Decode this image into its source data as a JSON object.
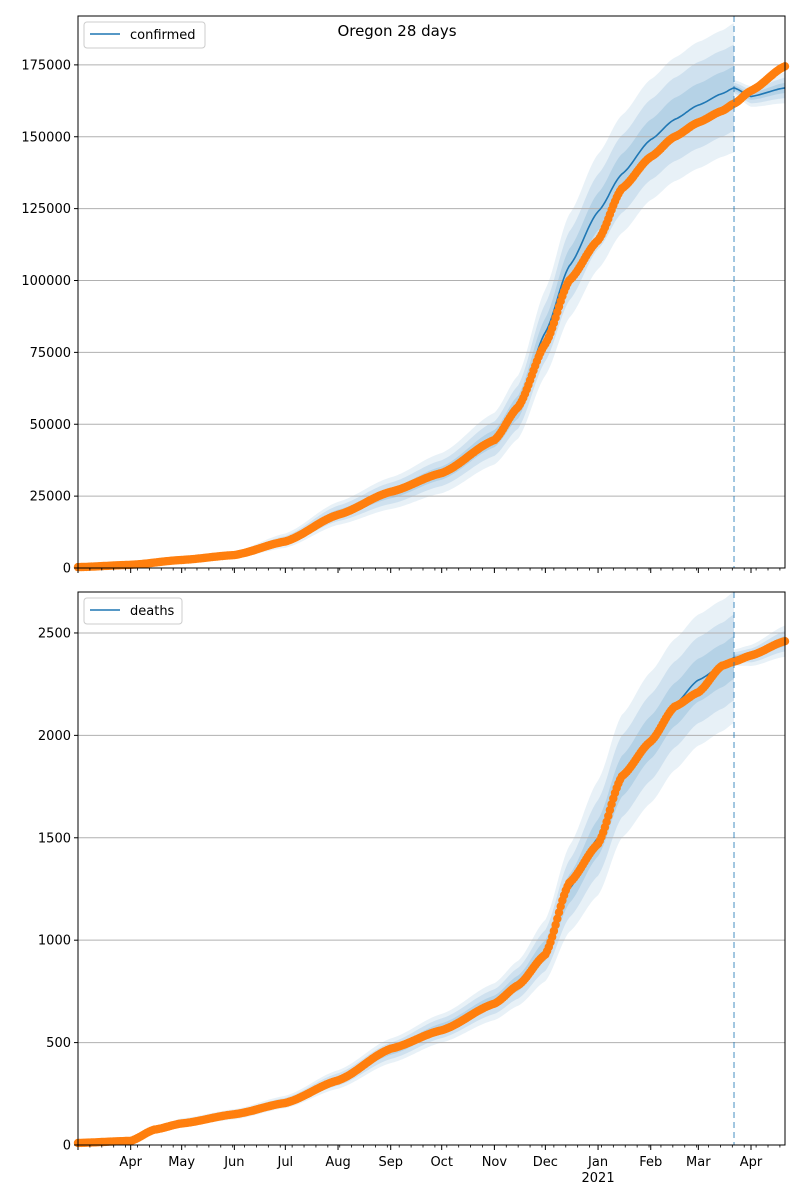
{
  "figure": {
    "title": "Oregon 28 days"
  },
  "chart_data": [
    {
      "type": "line",
      "legend": "confirmed",
      "legend_position": "top-left",
      "grid": "horizontal",
      "ylim": [
        0,
        192000
      ],
      "yticks": [
        0,
        25000,
        50000,
        75000,
        100000,
        125000,
        150000,
        175000
      ],
      "xlim": [
        "2020-03-01",
        "2021-04-21"
      ],
      "forecast_start": "2021-03-22",
      "series_colors": {
        "model": "#1f77b4",
        "observed": "#ff7f0e",
        "band": "#1f77b4"
      },
      "model": {
        "x": [
          "2020-03-01",
          "2020-04-01",
          "2020-05-01",
          "2020-06-01",
          "2020-07-01",
          "2020-08-01",
          "2020-09-01",
          "2020-10-01",
          "2020-11-01",
          "2020-11-15",
          "2020-12-01",
          "2020-12-15",
          "2021-01-01",
          "2021-01-15",
          "2021-02-01",
          "2021-02-15",
          "2021-03-01",
          "2021-03-15",
          "2021-03-22",
          "2021-04-01",
          "2021-04-21"
        ],
        "y": [
          0,
          1000,
          2800,
          4500,
          9500,
          19000,
          26000,
          33000,
          45000,
          56000,
          82000,
          105000,
          124000,
          137000,
          149000,
          156000,
          161000,
          165000,
          167000,
          164000,
          167000
        ],
        "band_half_widths": [
          [
            0,
            300,
            800,
            1200,
            2500,
            4000,
            5500,
            7000,
            9000,
            11000,
            15000,
            18000,
            20000,
            20500,
            21000,
            21500,
            22000,
            22000,
            22500,
            0,
            0
          ],
          [
            0,
            200,
            500,
            800,
            1600,
            2700,
            3700,
            4500,
            6000,
            7500,
            10000,
            12000,
            13000,
            13500,
            14000,
            14500,
            15000,
            15000,
            15000,
            0,
            0
          ],
          [
            0,
            100,
            250,
            400,
            800,
            1300,
            1800,
            2300,
            3000,
            4000,
            5000,
            6000,
            6500,
            7000,
            7000,
            7500,
            7500,
            7500,
            7500,
            0,
            0
          ]
        ]
      },
      "observed": {
        "x": [
          "2020-03-01",
          "2020-04-01",
          "2020-05-01",
          "2020-06-01",
          "2020-07-01",
          "2020-08-01",
          "2020-09-01",
          "2020-10-01",
          "2020-11-01",
          "2020-11-15",
          "2020-12-01",
          "2020-12-15",
          "2021-01-01",
          "2021-01-15",
          "2021-02-01",
          "2021-02-15",
          "2021-03-01",
          "2021-03-15",
          "2021-03-22",
          "2021-04-01",
          "2021-04-21"
        ],
        "y": [
          300,
          1100,
          2800,
          4500,
          9200,
          18500,
          26500,
          33000,
          44500,
          56000,
          78000,
          100000,
          114000,
          132000,
          143000,
          150000,
          155000,
          159000,
          161500,
          166000,
          174500
        ]
      }
    },
    {
      "type": "line",
      "legend": "deaths",
      "legend_position": "top-left",
      "grid": "horizontal",
      "ylim": [
        0,
        2700
      ],
      "yticks": [
        0,
        500,
        1000,
        1500,
        2000,
        2500
      ],
      "xlim": [
        "2020-03-01",
        "2021-04-21"
      ],
      "xticks": [
        "Apr",
        "May",
        "Jun",
        "Jul",
        "Aug",
        "Sep",
        "Oct",
        "Nov",
        "Dec",
        "Jan",
        "Feb",
        "Mar",
        "Apr"
      ],
      "xtick_dates": [
        "2020-04-01",
        "2020-05-01",
        "2020-06-01",
        "2020-07-01",
        "2020-08-01",
        "2020-09-01",
        "2020-10-01",
        "2020-11-01",
        "2020-12-01",
        "2021-01-01",
        "2021-02-01",
        "2021-03-01",
        "2021-04-01"
      ],
      "year_label": "2021",
      "forecast_start": "2021-03-22",
      "series_colors": {
        "model": "#1f77b4",
        "observed": "#ff7f0e",
        "band": "#1f77b4"
      },
      "model": {
        "x": [
          "2020-03-01",
          "2020-04-01",
          "2020-04-15",
          "2020-05-01",
          "2020-06-01",
          "2020-07-01",
          "2020-08-01",
          "2020-09-01",
          "2020-10-01",
          "2020-11-01",
          "2020-11-15",
          "2020-12-01",
          "2020-12-15",
          "2021-01-01",
          "2021-01-15",
          "2021-02-01",
          "2021-02-15",
          "2021-03-01",
          "2021-03-15",
          "2021-03-22",
          "2021-04-01",
          "2021-04-21"
        ],
        "y": [
          0,
          20,
          70,
          110,
          150,
          210,
          320,
          460,
          570,
          700,
          790,
          950,
          1250,
          1500,
          1800,
          1990,
          2150,
          2270,
          2340,
          2380,
          2390,
          2460
        ],
        "band_half_widths": [
          [
            0,
            5,
            15,
            20,
            25,
            30,
            45,
            60,
            70,
            90,
            110,
            150,
            210,
            280,
            300,
            320,
            320,
            320,
            320,
            320,
            0,
            0
          ],
          [
            0,
            3,
            10,
            13,
            17,
            20,
            30,
            40,
            48,
            60,
            75,
            100,
            140,
            185,
            200,
            210,
            210,
            210,
            210,
            210,
            0,
            0
          ],
          [
            0,
            2,
            5,
            7,
            9,
            10,
            15,
            20,
            24,
            30,
            38,
            50,
            70,
            90,
            100,
            105,
            105,
            105,
            105,
            105,
            0,
            0
          ]
        ]
      },
      "observed": {
        "x": [
          "2020-03-01",
          "2020-04-01",
          "2020-04-15",
          "2020-05-01",
          "2020-06-01",
          "2020-07-01",
          "2020-08-01",
          "2020-09-01",
          "2020-10-01",
          "2020-11-01",
          "2020-11-15",
          "2020-12-01",
          "2020-12-15",
          "2021-01-01",
          "2021-01-15",
          "2021-02-01",
          "2021-02-15",
          "2021-03-01",
          "2021-03-15",
          "2021-03-22",
          "2021-04-01",
          "2021-04-21"
        ],
        "y": [
          10,
          20,
          75,
          105,
          150,
          205,
          315,
          470,
          560,
          690,
          780,
          930,
          1280,
          1470,
          1800,
          1970,
          2140,
          2210,
          2340,
          2360,
          2390,
          2460
        ]
      }
    }
  ]
}
